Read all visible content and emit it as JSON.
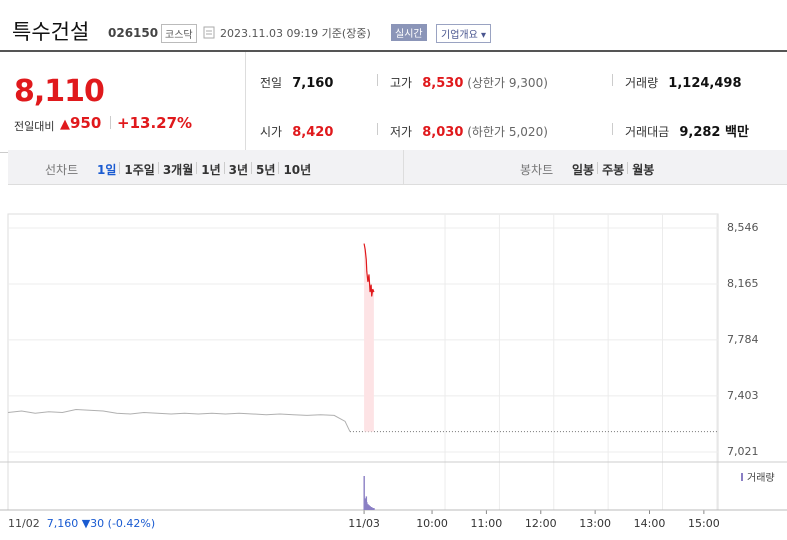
{
  "header": {
    "title": "특수건설",
    "code": "026150",
    "market": "코스닥",
    "datetime": "2023.11.03 09:19 기준(장중)",
    "realtime": "실시간",
    "company_info": "기업개요"
  },
  "quote": {
    "price": "8,110",
    "change_label": "전일대비",
    "change": "950",
    "rate": "+13.27%"
  },
  "stats": [
    {
      "label": "전일",
      "value": "7,160"
    },
    {
      "label": "고가",
      "value": "8,530",
      "note_label": "상한가",
      "note_value": "9,300"
    },
    {
      "label": "거래량",
      "value": "1,124,498"
    },
    {
      "label": "시가",
      "value": "8,420"
    },
    {
      "label": "저가",
      "value": "8,030",
      "note_label": "하한가",
      "note_value": "5,020"
    },
    {
      "label": "거래대금",
      "value": "9,282 백만"
    }
  ],
  "tabs": {
    "line": {
      "label": "선차트",
      "items": [
        "1일",
        "1주일",
        "3개월",
        "1년",
        "3년",
        "5년",
        "10년"
      ]
    },
    "candle": {
      "label": "봉차트",
      "items": [
        "일봉",
        "주봉",
        "월봉"
      ]
    }
  },
  "chart": {
    "ylim": [
      7021,
      8546
    ],
    "yticks": [
      {
        "value": 8546,
        "label": "8,546"
      },
      {
        "value": 8165,
        "label": "8,165"
      },
      {
        "value": 7784,
        "label": "7,784"
      },
      {
        "value": 7403,
        "label": "7,403"
      },
      {
        "value": 7021,
        "label": "7,021"
      }
    ],
    "xlim": [
      2.2,
      15.26
    ],
    "xticks": [
      {
        "value": 8.75,
        "label": "11/03"
      },
      {
        "value": 10,
        "label": "10:00"
      },
      {
        "value": 11,
        "label": "11:00"
      },
      {
        "value": 12,
        "label": "12:00"
      },
      {
        "value": 13,
        "label": "13:00"
      },
      {
        "value": 14,
        "label": "14:00"
      },
      {
        "value": 15,
        "label": "15:00"
      }
    ],
    "previous": {
      "color": "#b0b0b0",
      "x": [
        2.2,
        2.45,
        2.7,
        2.95,
        3.2,
        3.45,
        3.7,
        3.95,
        4.2,
        4.45,
        4.7,
        4.95,
        5.2,
        5.45,
        5.7,
        5.95,
        6.2,
        6.45,
        6.7,
        6.95,
        7.2,
        7.45,
        7.7,
        7.95,
        8.2,
        8.4,
        8.49
      ],
      "values": [
        7290,
        7300,
        7285,
        7295,
        7290,
        7310,
        7305,
        7300,
        7285,
        7280,
        7290,
        7285,
        7280,
        7285,
        7280,
        7285,
        7280,
        7285,
        7280,
        7275,
        7280,
        7275,
        7270,
        7275,
        7270,
        7230,
        7160
      ]
    },
    "today": {
      "color": "#e0191c",
      "fill": "#fde3e5",
      "x": [
        8.75,
        8.77,
        8.79,
        8.8,
        8.82,
        8.84,
        8.86,
        8.88,
        8.89,
        8.91,
        8.93
      ],
      "values": [
        8440,
        8400,
        8330,
        8250,
        8180,
        8230,
        8110,
        8160,
        8080,
        8130,
        8110
      ]
    },
    "baseline": 7160,
    "volume": {
      "label": "거래량",
      "color": "#8a7fc4",
      "values": [
        35,
        12,
        14,
        8,
        6,
        5,
        4,
        3,
        3,
        2,
        2
      ]
    },
    "footer": {
      "date": "11/02",
      "close": "7,160",
      "change": "▼30",
      "rate": "(-0.42%)"
    }
  }
}
